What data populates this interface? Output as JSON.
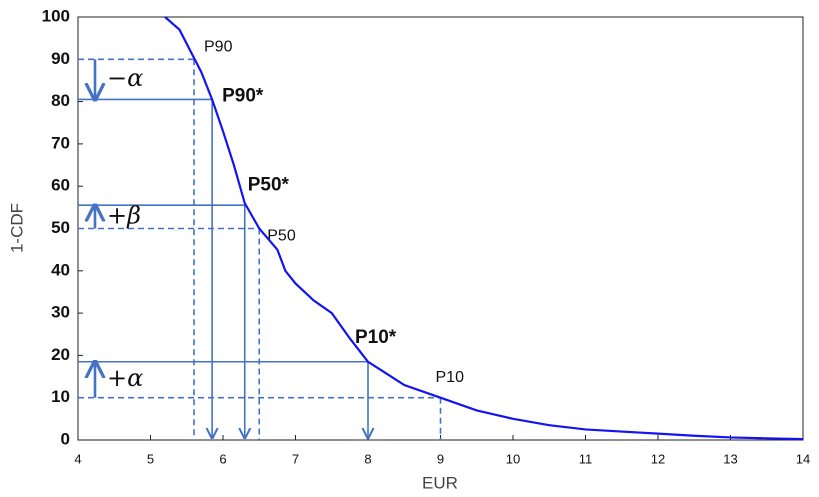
{
  "chart_data": {
    "type": "line",
    "x_label": "EUR",
    "y_label": "1-CDF",
    "x": [
      5.2,
      5.4,
      5.55,
      5.7,
      5.85,
      6.0,
      6.15,
      6.3,
      6.5,
      6.75,
      6.86,
      7.0,
      7.25,
      7.5,
      7.75,
      8.0,
      8.5,
      9.0,
      9.5,
      10.0,
      10.5,
      11.0,
      11.5,
      12.0,
      12.5,
      13.0,
      13.5,
      14.0
    ],
    "series": [
      {
        "color": "#1414f0",
        "values": [
          100,
          97,
          92,
          87,
          80.5,
          73,
          65,
          56,
          50,
          45,
          40,
          37,
          33,
          30,
          24,
          18.5,
          13,
          10,
          7,
          5,
          3.5,
          2.5,
          2,
          1.5,
          1,
          0.6,
          0.4,
          0.2
        ]
      }
    ],
    "markers": [
      {
        "label": "P90",
        "x": 5.6,
        "y": 90,
        "style": "dashed"
      },
      {
        "label": "P90*",
        "x": 5.85,
        "y": 80.5,
        "style": "solid"
      },
      {
        "label": "P50*",
        "x": 6.3,
        "y": 55.5,
        "style": "solid"
      },
      {
        "label": "P50",
        "x": 6.5,
        "y": 50,
        "style": "dashed"
      },
      {
        "label": "P10*",
        "x": 8,
        "y": 18.5,
        "style": "solid"
      },
      {
        "label": "P10",
        "x": 9,
        "y": 10,
        "style": "dashed"
      }
    ],
    "shifts": [
      {
        "label": "−α",
        "from": 90,
        "to": 80.5
      },
      {
        "label": "+β",
        "from": 50,
        "to": 55.5
      },
      {
        "label": "+α",
        "from": 10,
        "to": 18.5
      }
    ],
    "annotation_color": "#4472c4",
    "xlim": [
      4,
      14
    ],
    "ylim": [
      0,
      100
    ],
    "xticks": [
      4,
      5,
      6,
      7,
      8,
      9,
      10,
      11,
      12,
      13,
      14
    ],
    "yticks": [
      0,
      10,
      20,
      30,
      40,
      50,
      60,
      70,
      80,
      90,
      100
    ]
  }
}
